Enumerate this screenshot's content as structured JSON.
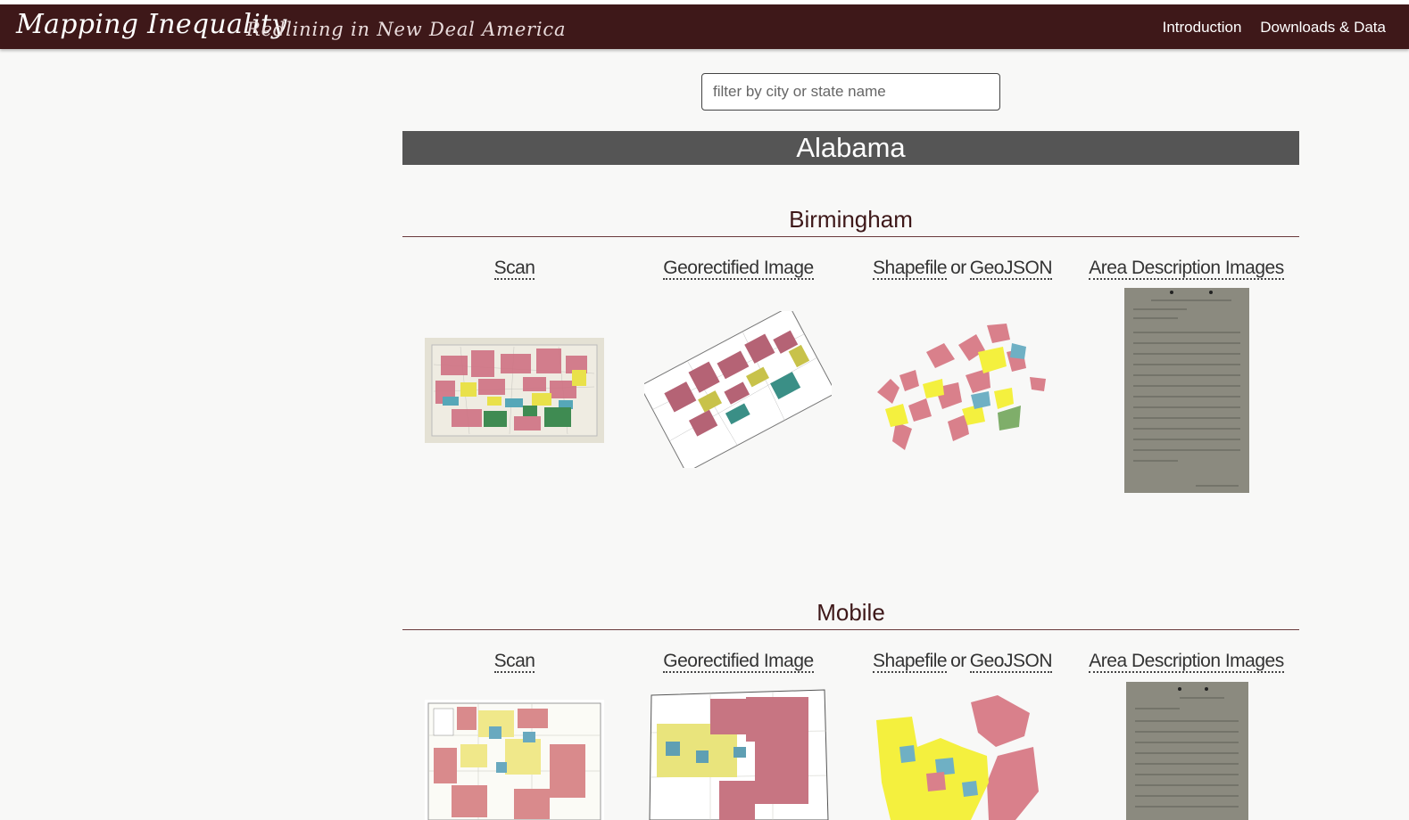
{
  "header": {
    "title": "Mapping Inequality",
    "tagline": "Redlining in New Deal America",
    "nav": [
      {
        "label": "Introduction"
      },
      {
        "label": "Downloads & Data"
      }
    ]
  },
  "search": {
    "placeholder": "filter by city or state name"
  },
  "state": {
    "name": "Alabama"
  },
  "columns": {
    "scan": "Scan",
    "georectified": "Georectified Image",
    "shapefile": "Shapefile",
    "or": "or",
    "geojson": "GeoJSON",
    "area_description": "Area Description Images"
  },
  "cities": [
    {
      "name": "Birmingham"
    },
    {
      "name": "Mobile"
    }
  ],
  "colors": {
    "header_bg": "#3e1819",
    "band_bg": "#555555",
    "grade_a": "#7fae6a",
    "grade_b": "#6fb0c4",
    "grade_c": "#f4f03e",
    "grade_d": "#d9808b"
  }
}
